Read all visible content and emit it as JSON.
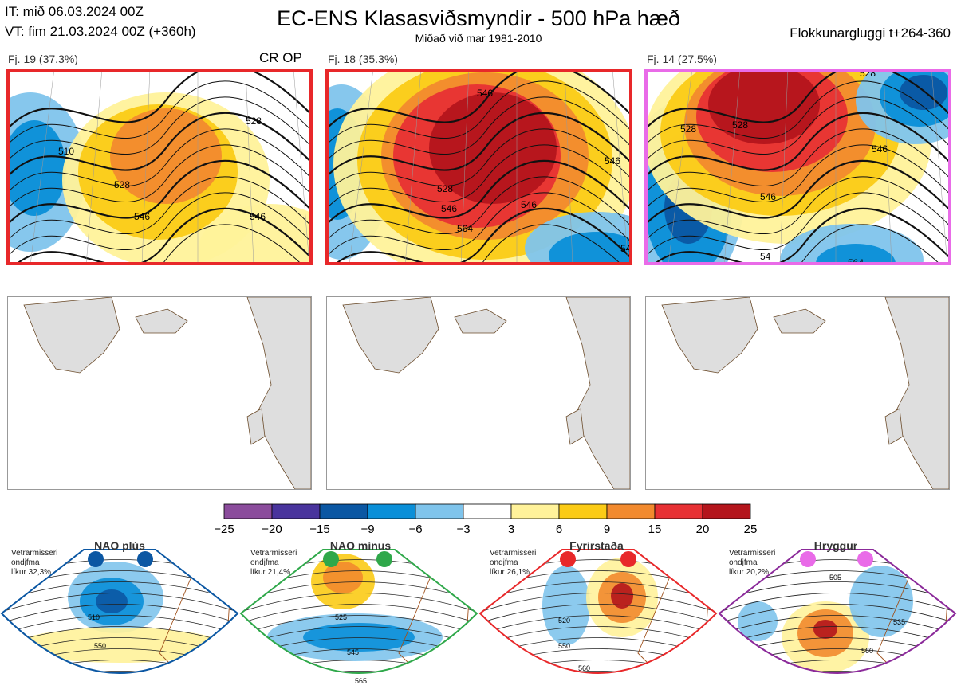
{
  "header": {
    "it_line": "IT: mið 06.03.2024 00Z",
    "vt_line": "VT: fim 21.03.2024 00Z  (+360h)",
    "title": "EC-ENS Klasasviðsmyndir - 500 hPa hæð",
    "subtitle": "Miðað við mar 1981-2010",
    "window": "Flokkunargluggi t+264-360"
  },
  "clusters": [
    {
      "label": "Fj. 19 (37.3%)",
      "frame_color": "#e8282a",
      "note": "CR OP",
      "contours": [
        "510",
        "528",
        "546",
        "528",
        "546"
      ]
    },
    {
      "label": "Fj. 18 (35.3%)",
      "frame_color": "#e8282a",
      "note": "",
      "contours": [
        "546",
        "528",
        "546",
        "564",
        "546",
        "546",
        "54"
      ]
    },
    {
      "label": "Fj. 14 (27.5%)",
      "frame_color": "#e96be8",
      "note": "",
      "contours": [
        "528",
        "528",
        "546",
        "546",
        "528",
        "54",
        "564"
      ]
    }
  ],
  "colorbar": {
    "colors": [
      "#8b4c9c",
      "#49349d",
      "#0b57a3",
      "#0a8fd8",
      "#7fc4ec",
      "#ffffff",
      "#fff29a",
      "#fbcb16",
      "#f28a2e",
      "#e73134",
      "#b4151c"
    ],
    "ticks": [
      "−25",
      "−20",
      "−15",
      "−9",
      "−6",
      "−3",
      "3",
      "6",
      "9",
      "15",
      "20",
      "25"
    ]
  },
  "regimes": [
    {
      "name": "NAO plús",
      "season": "Vetrarmisseri",
      "field": "ondjfma",
      "prob": "líkur 32,3%",
      "color": "#0b57a3",
      "labels": [
        "510",
        "550"
      ]
    },
    {
      "name": "NAO mínus",
      "season": "Vetrarmisseri",
      "field": "ondjfma",
      "prob": "líkur 21,4%",
      "color": "#2fa84a",
      "labels": [
        "525",
        "545",
        "565"
      ]
    },
    {
      "name": "Fyrirstaða",
      "season": "Vetrarmisseri",
      "field": "ondjfma",
      "prob": "líkur 26,1%",
      "color": "#e8282a",
      "labels": [
        "520",
        "550",
        "560"
      ]
    },
    {
      "name": "Hryggur",
      "season": "Vetrarmisseri",
      "field": "ondjfma",
      "prob": "líkur 20,2%",
      "color": "#8b2a9a",
      "labels": [
        "505",
        "535",
        "560"
      ]
    }
  ]
}
